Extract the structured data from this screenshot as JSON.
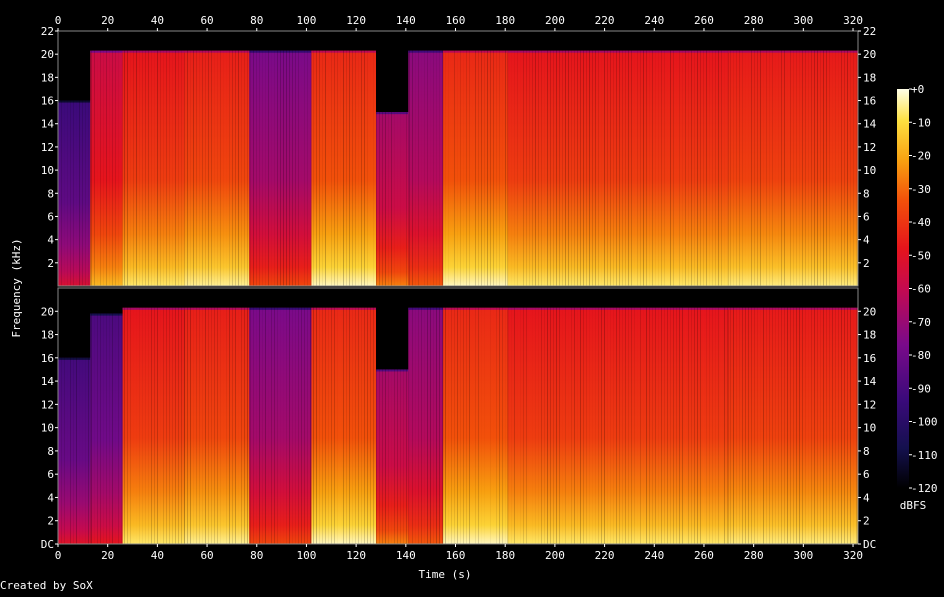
{
  "chart_data": {
    "type": "heatmap",
    "title": "",
    "xlabel": "Time (s)",
    "ylabel": "Frequency (kHz)",
    "xlim": [
      0,
      322
    ],
    "ylim": [
      0,
      22
    ],
    "x_ticks": [
      "0",
      "20",
      "40",
      "60",
      "80",
      "100",
      "120",
      "140",
      "160",
      "180",
      "200",
      "220",
      "240",
      "260",
      "280",
      "300",
      "320"
    ],
    "y_ticks_top": [
      "2",
      "4",
      "6",
      "8",
      "10",
      "12",
      "14",
      "16",
      "18",
      "20",
      "22"
    ],
    "y_ticks_bottom": [
      "DC",
      "2",
      "4",
      "6",
      "8",
      "10",
      "12",
      "14",
      "16",
      "18",
      "20"
    ],
    "colorbar": {
      "label": "dBFS",
      "ticks": [
        "+0",
        "-10",
        "-20",
        "-30",
        "-40",
        "-50",
        "-60",
        "-70",
        "-80",
        "-90",
        "-100",
        "-110",
        "-120"
      ],
      "range": [
        -120,
        0
      ]
    },
    "channels": [
      {
        "name": "channel 1",
        "segments": [
          {
            "start": 0,
            "end": 13,
            "max_khz": 16,
            "level": 0.28
          },
          {
            "start": 13,
            "end": 26,
            "max_khz": 20.3,
            "level": 0.58
          },
          {
            "start": 26,
            "end": 51,
            "max_khz": 20.3,
            "level": 0.66
          },
          {
            "start": 51,
            "end": 77,
            "max_khz": 20.3,
            "level": 0.68
          },
          {
            "start": 77,
            "end": 102,
            "max_khz": 20.3,
            "level": 0.42
          },
          {
            "start": 102,
            "end": 128,
            "max_khz": 20.3,
            "level": 0.7
          },
          {
            "start": 128,
            "end": 141,
            "max_khz": 15,
            "level": 0.5
          },
          {
            "start": 141,
            "end": 155,
            "max_khz": 20.3,
            "level": 0.45
          },
          {
            "start": 155,
            "end": 181,
            "max_khz": 20.3,
            "level": 0.7
          },
          {
            "start": 181,
            "end": 270,
            "max_khz": 20.3,
            "level": 0.66
          },
          {
            "start": 270,
            "end": 322,
            "max_khz": 20.3,
            "level": 0.67
          }
        ]
      },
      {
        "name": "channel 2",
        "segments": [
          {
            "start": 0,
            "end": 13,
            "max_khz": 16,
            "level": 0.3
          },
          {
            "start": 13,
            "end": 26,
            "max_khz": 19.8,
            "level": 0.32
          },
          {
            "start": 26,
            "end": 51,
            "max_khz": 20.3,
            "level": 0.66
          },
          {
            "start": 51,
            "end": 77,
            "max_khz": 20.3,
            "level": 0.68
          },
          {
            "start": 77,
            "end": 102,
            "max_khz": 20.3,
            "level": 0.42
          },
          {
            "start": 102,
            "end": 128,
            "max_khz": 20.3,
            "level": 0.7
          },
          {
            "start": 128,
            "end": 141,
            "max_khz": 15,
            "level": 0.5
          },
          {
            "start": 141,
            "end": 155,
            "max_khz": 20.3,
            "level": 0.45
          },
          {
            "start": 155,
            "end": 181,
            "max_khz": 20.3,
            "level": 0.7
          },
          {
            "start": 181,
            "end": 270,
            "max_khz": 20.3,
            "level": 0.66
          },
          {
            "start": 270,
            "end": 322,
            "max_khz": 20.3,
            "level": 0.67
          }
        ]
      }
    ]
  },
  "footer": {
    "credit": "Created by SoX"
  }
}
